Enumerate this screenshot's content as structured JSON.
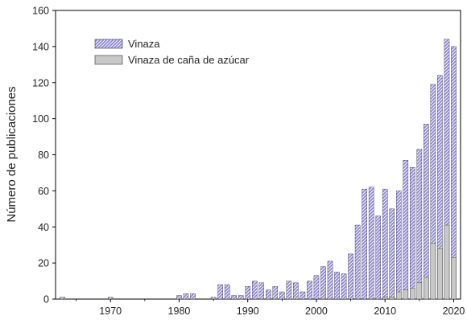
{
  "chart_data": {
    "type": "bar",
    "title": "",
    "xlabel": "",
    "ylabel": "Número de publicaciones",
    "xlim": [
      1962,
      2021
    ],
    "ylim": [
      0,
      160
    ],
    "x_ticks": [
      1970,
      1980,
      1990,
      2000,
      2010,
      2020
    ],
    "y_ticks": [
      0,
      20,
      40,
      60,
      80,
      100,
      120,
      140,
      160
    ],
    "grid": false,
    "legend_position": "top-left",
    "series": [
      {
        "name": "Vinaza",
        "fill": "#8c84d6",
        "pattern": "hatched",
        "points": [
          [
            1963,
            1
          ],
          [
            1970,
            1
          ],
          [
            1980,
            2
          ],
          [
            1981,
            3
          ],
          [
            1982,
            3
          ],
          [
            1985,
            1
          ],
          [
            1986,
            8
          ],
          [
            1987,
            8
          ],
          [
            1988,
            2
          ],
          [
            1989,
            2
          ],
          [
            1990,
            7
          ],
          [
            1991,
            10
          ],
          [
            1992,
            9
          ],
          [
            1993,
            5
          ],
          [
            1994,
            7
          ],
          [
            1995,
            4
          ],
          [
            1996,
            10
          ],
          [
            1997,
            9
          ],
          [
            1998,
            4
          ],
          [
            1999,
            10
          ],
          [
            2000,
            13
          ],
          [
            2001,
            18
          ],
          [
            2002,
            21
          ],
          [
            2003,
            15
          ],
          [
            2004,
            14
          ],
          [
            2005,
            25
          ],
          [
            2006,
            41
          ],
          [
            2007,
            61
          ],
          [
            2008,
            62
          ],
          [
            2009,
            46
          ],
          [
            2010,
            61
          ],
          [
            2011,
            50
          ],
          [
            2012,
            60
          ],
          [
            2013,
            77
          ],
          [
            2014,
            73
          ],
          [
            2015,
            83
          ],
          [
            2016,
            97
          ],
          [
            2017,
            119
          ],
          [
            2018,
            124
          ],
          [
            2019,
            144
          ],
          [
            2020,
            140
          ]
        ]
      },
      {
        "name": "Vinaza de caña de azúcar",
        "fill": "#c8c8c8",
        "pattern": "solid",
        "points": [
          [
            2010,
            1
          ],
          [
            2011,
            1
          ],
          [
            2012,
            4
          ],
          [
            2013,
            5
          ],
          [
            2014,
            6
          ],
          [
            2015,
            9
          ],
          [
            2016,
            12
          ],
          [
            2017,
            31
          ],
          [
            2018,
            28
          ],
          [
            2019,
            41
          ],
          [
            2020,
            23
          ]
        ]
      }
    ]
  }
}
